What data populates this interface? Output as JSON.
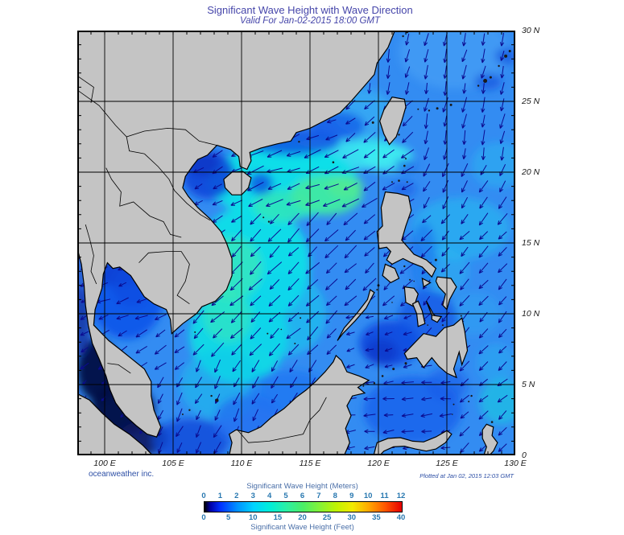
{
  "title": "Significant Wave Height with Wave Direction",
  "subtitle": "Valid For Jan-02-2015 18:00 GMT",
  "credit": "oceanweather inc.",
  "plotted": "Plotted at Jan 02, 2015 12:03 GMT",
  "map": {
    "lon_min": 98,
    "lon_max": 130,
    "lat_min": 0,
    "lat_max": 30,
    "grid_step_deg": 5,
    "tick_step_deg": 1,
    "lat_labels": [
      "30 N",
      "25 N",
      "20 N",
      "15 N",
      "10 N",
      "5 N",
      "0"
    ],
    "lon_labels": [
      "100 E",
      "105 E",
      "110 E",
      "115 E",
      "120 E",
      "125 E",
      "130 E"
    ]
  },
  "legend": {
    "title_meters": "Significant Wave Height (Meters)",
    "title_feet": "Significant Wave Height (Feet)",
    "meters_ticks": [
      "0",
      "1",
      "2",
      "3",
      "4",
      "5",
      "6",
      "7",
      "8",
      "9",
      "10",
      "11",
      "12"
    ],
    "feet_ticks": [
      "0",
      "5",
      "10",
      "15",
      "20",
      "25",
      "30",
      "35",
      "40"
    ],
    "gradient": [
      [
        0,
        "#000000"
      ],
      [
        0.03,
        "#0000a8"
      ],
      [
        0.08,
        "#0030ff"
      ],
      [
        0.167,
        "#0092ff"
      ],
      [
        0.25,
        "#00d4ff"
      ],
      [
        0.333,
        "#00eed8"
      ],
      [
        0.417,
        "#2cf0a4"
      ],
      [
        0.5,
        "#4bee66"
      ],
      [
        0.583,
        "#83f238"
      ],
      [
        0.667,
        "#bff303"
      ],
      [
        0.75,
        "#f2ea00"
      ],
      [
        0.833,
        "#ffa800"
      ],
      [
        0.917,
        "#ff5500"
      ],
      [
        1,
        "#e60000"
      ]
    ]
  },
  "colors": {
    "land": "#c4c4c4",
    "coast": "#000000",
    "ocean_base": "#338cf2",
    "arrow": "#0b0b8f",
    "grid": "#000000",
    "title_text": "#4646aa",
    "axis_text": "#1a1a1a",
    "legend_title_text": "#4a6fa8",
    "legend_tick_text": "#2878b0",
    "credit_text": "#2d4fa5"
  }
}
